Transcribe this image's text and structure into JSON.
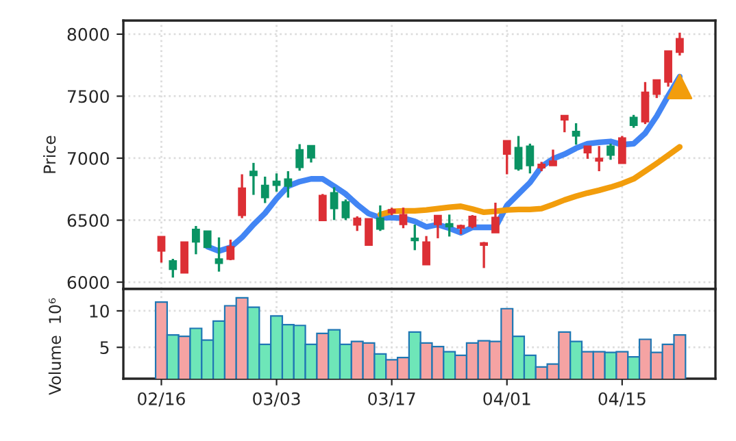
{
  "chart_data": [
    {
      "type": "candlestick",
      "ylabel": "Price",
      "categories": [
        null,
        null,
        null,
        null,
        null,
        null,
        null,
        null,
        null,
        null,
        null,
        null,
        null,
        null,
        null,
        null,
        null,
        null,
        null,
        null,
        null,
        null,
        null,
        null,
        null,
        null,
        null,
        null,
        null,
        null,
        null,
        null,
        null,
        null,
        null,
        null,
        null,
        null,
        null,
        null,
        null,
        null,
        null,
        null,
        null,
        null
      ],
      "ohlc": [
        [
          6251,
          6368,
          6158,
          6368
        ],
        [
          6173,
          6188,
          6037,
          6103
        ],
        [
          6074,
          6324,
          6074,
          6324
        ],
        [
          6427,
          6453,
          6225,
          6324
        ],
        [
          6413,
          6413,
          6280,
          6280
        ],
        [
          6188,
          6361,
          6085,
          6151
        ],
        [
          6184,
          6343,
          6177,
          6287
        ],
        [
          6538,
          6870,
          6516,
          6759
        ],
        [
          6895,
          6962,
          6704,
          6859
        ],
        [
          6781,
          6851,
          6638,
          6682
        ],
        [
          6814,
          6877,
          6730,
          6781
        ],
        [
          6833,
          6895,
          6682,
          6774
        ],
        [
          7069,
          7113,
          6899,
          6925
        ],
        [
          7102,
          7102,
          6965,
          7002
        ],
        [
          6497,
          6711,
          6497,
          6700
        ],
        [
          6722,
          6766,
          6501,
          6593
        ],
        [
          6649,
          6667,
          6501,
          6520
        ],
        [
          6461,
          6531,
          6413,
          6516
        ],
        [
          6298,
          6512,
          6298,
          6512
        ],
        [
          6516,
          6619,
          6413,
          6427
        ],
        [
          6560,
          6600,
          6540,
          6585
        ],
        [
          6464,
          6601,
          6435,
          6545
        ],
        [
          6354,
          6464,
          6258,
          6335
        ],
        [
          6140,
          6372,
          6140,
          6324
        ],
        [
          6464,
          6538,
          6354,
          6538
        ],
        [
          6472,
          6545,
          6368,
          6446
        ],
        [
          6435,
          6464,
          6387,
          6457
        ],
        [
          6450,
          6541,
          6435,
          6531
        ],
        [
          6298,
          6324,
          6114,
          6317
        ],
        [
          6398,
          6641,
          6398,
          6523
        ],
        [
          7032,
          7142,
          6870,
          7142
        ],
        [
          7087,
          7179,
          6899,
          6914
        ],
        [
          7098,
          7117,
          6877,
          6940
        ],
        [
          6921,
          6970,
          6895,
          6951
        ],
        [
          6940,
          7069,
          6940,
          6977
        ],
        [
          7308,
          7345,
          7209,
          7345
        ],
        [
          7216,
          7282,
          7109,
          7179
        ],
        [
          7043,
          7098,
          6995,
          7098
        ],
        [
          6977,
          7098,
          6895,
          6999
        ],
        [
          7098,
          7117,
          6987,
          7024
        ],
        [
          6958,
          7179,
          6958,
          7164
        ],
        [
          7330,
          7349,
          7245,
          7264
        ],
        [
          7293,
          7614,
          7275,
          7533
        ],
        [
          7515,
          7632,
          7485,
          7632
        ],
        [
          7614,
          7865,
          7577,
          7865
        ],
        [
          7853,
          8012,
          7828,
          7964
        ]
      ],
      "colors": [
        "#dc2f35",
        "#0a9363",
        "#dc2f35",
        "#0a9363",
        "#0a9363",
        "#0a9363",
        "#dc2f35",
        "#dc2f35",
        "#0a9363",
        "#0a9363",
        "#0a9363",
        "#0a9363",
        "#0a9363",
        "#0a9363",
        "#dc2f35",
        "#0a9363",
        "#0a9363",
        "#dc2f35",
        "#dc2f35",
        "#0a9363",
        "#dc2f35",
        "#dc2f35",
        "#0a9363",
        "#dc2f35",
        "#dc2f35",
        "#0a9363",
        "#dc2f35",
        "#dc2f35",
        "#dc2f35",
        "#dc2f35",
        "#dc2f35",
        "#0a9363",
        "#0a9363",
        "#dc2f35",
        "#dc2f35",
        "#dc2f35",
        "#0a9363",
        "#dc2f35",
        "#dc2f35",
        "#0a9363",
        "#dc2f35",
        "#0a9363",
        "#dc2f35",
        "#dc2f35",
        "#dc2f35",
        "#dc2f35"
      ],
      "series": [
        {
          "type": "line",
          "color": "#4285f4",
          "values": [
            null,
            null,
            null,
            null,
            6287,
            6251,
            6280,
            6361,
            6464,
            6556,
            6674,
            6774,
            6811,
            6833,
            6833,
            6774,
            6711,
            6626,
            6553,
            6520,
            6520,
            6516,
            6490,
            6446,
            6464,
            6435,
            6398,
            6442,
            6442,
            6442,
            6619,
            6711,
            6803,
            6932,
            6995,
            7032,
            7080,
            7117,
            7128,
            7135,
            7109,
            7117,
            7201,
            7338,
            7503,
            7658
          ]
        },
        {
          "type": "line",
          "color": "#f29d0c",
          "values": [
            null,
            null,
            null,
            null,
            null,
            null,
            null,
            null,
            null,
            null,
            null,
            null,
            null,
            null,
            null,
            null,
            null,
            null,
            null,
            6545,
            6571,
            6575,
            6575,
            6582,
            6593,
            6604,
            6612,
            6590,
            6564,
            6571,
            6582,
            6586,
            6586,
            6593,
            6626,
            6663,
            6693,
            6719,
            6741,
            6766,
            6796,
            6833,
            6895,
            6958,
            7024,
            7091
          ]
        },
        {
          "type": "scatter",
          "color": "#f29d0c",
          "marker": "triangle",
          "values": [
            null,
            null,
            null,
            null,
            null,
            null,
            null,
            null,
            null,
            null,
            null,
            null,
            null,
            null,
            null,
            null,
            null,
            null,
            null,
            null,
            null,
            null,
            null,
            null,
            null,
            null,
            null,
            null,
            null,
            null,
            null,
            null,
            null,
            null,
            null,
            null,
            null,
            null,
            null,
            null,
            null,
            null,
            null,
            null,
            null,
            7577
          ]
        }
      ],
      "ylim": [
        5945,
        8110
      ],
      "yticks": [
        6000,
        6500,
        7000,
        7500,
        8000
      ],
      "grid": true
    },
    {
      "type": "bar",
      "ylabel": "Volume  10⁶",
      "categories": [
        "02/16",
        null,
        null,
        null,
        null,
        null,
        null,
        null,
        null,
        null,
        "03/03",
        null,
        null,
        null,
        null,
        null,
        null,
        null,
        null,
        null,
        "03/17",
        null,
        null,
        null,
        null,
        null,
        null,
        null,
        null,
        null,
        "04/01",
        null,
        null,
        null,
        null,
        null,
        null,
        null,
        null,
        null,
        "04/15",
        null,
        null,
        null,
        null,
        null
      ],
      "values": [
        11.2,
        6.7,
        6.5,
        7.6,
        6,
        8.6,
        10.7,
        11.8,
        10.5,
        5.4,
        9.3,
        8.1,
        8,
        5.4,
        6.9,
        7.4,
        5.4,
        5.8,
        5.6,
        4.1,
        3.3,
        3.6,
        7.1,
        5.6,
        5.1,
        4.4,
        3.9,
        5.6,
        5.9,
        5.8,
        10.3,
        6.5,
        3.9,
        2.3,
        2.7,
        7.1,
        5.8,
        4.4,
        4.4,
        4.3,
        4.4,
        3.7,
        6.1,
        4.3,
        5.4,
        6.7
      ],
      "colors": [
        "#f5a3a3",
        "#6ee6b8",
        "#f5a3a3",
        "#6ee6b8",
        "#6ee6b8",
        "#6ee6b8",
        "#f5a3a3",
        "#f5a3a3",
        "#6ee6b8",
        "#6ee6b8",
        "#6ee6b8",
        "#6ee6b8",
        "#6ee6b8",
        "#6ee6b8",
        "#f5a3a3",
        "#6ee6b8",
        "#6ee6b8",
        "#f5a3a3",
        "#f5a3a3",
        "#6ee6b8",
        "#f5a3a3",
        "#f5a3a3",
        "#6ee6b8",
        "#f5a3a3",
        "#f5a3a3",
        "#6ee6b8",
        "#f5a3a3",
        "#f5a3a3",
        "#f5a3a3",
        "#f5a3a3",
        "#f5a3a3",
        "#6ee6b8",
        "#6ee6b8",
        "#f5a3a3",
        "#f5a3a3",
        "#f5a3a3",
        "#6ee6b8",
        "#f5a3a3",
        "#f5a3a3",
        "#6ee6b8",
        "#f5a3a3",
        "#6ee6b8",
        "#f5a3a3",
        "#f5a3a3",
        "#f5a3a3",
        "#f5a3a3"
      ],
      "ylim": [
        0.7,
        13
      ],
      "yticks": [
        5,
        10
      ],
      "grid": true
    }
  ]
}
